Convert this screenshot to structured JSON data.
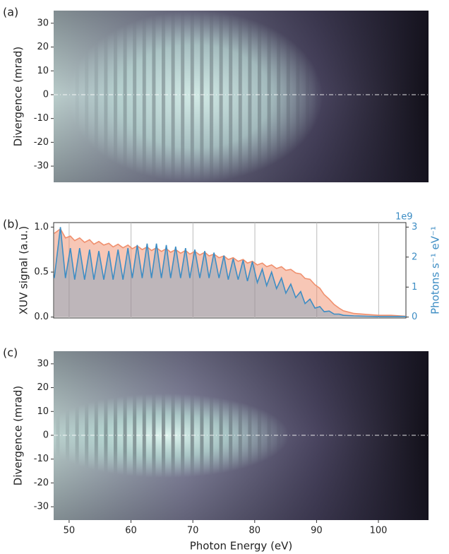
{
  "chart_data": [
    {
      "type": "heatmap",
      "label": "(a)",
      "ylabel": "Divergence (mrad)",
      "xlim": [
        47.5,
        108.1
      ],
      "ylim": [
        -36.8,
        35.3
      ],
      "yticks": [
        -30,
        -20,
        -10,
        0,
        10,
        20,
        30
      ]
    },
    {
      "type": "line",
      "label": "(b)",
      "ylabel": "XUV signal (a.u.)",
      "y2label": "Photons s⁻¹ eV⁻¹",
      "y2offset": "1e9",
      "xlim": [
        47.5,
        104.4
      ],
      "xgrid": [
        50,
        60,
        70,
        80,
        90,
        100
      ],
      "ylim": [
        -0.01,
        1.05
      ],
      "yticks": [
        {
          "value": 0,
          "label": "0.0"
        },
        {
          "value": 0.5,
          "label": "0.5"
        },
        {
          "value": 1,
          "label": "1.0"
        }
      ],
      "y2lim": [
        -0.03,
        3.15
      ],
      "y2ticks": [
        0,
        1,
        2,
        3
      ],
      "x": [
        47.6,
        48.6,
        49.4,
        50.2,
        50.9,
        51.7,
        52.5,
        53.3,
        54.0,
        54.8,
        55.6,
        56.4,
        57.1,
        57.9,
        58.7,
        59.5,
        60.2,
        61.0,
        61.8,
        62.6,
        63.3,
        64.1,
        64.9,
        65.7,
        66.4,
        67.2,
        68.0,
        68.8,
        69.5,
        70.3,
        71.1,
        71.9,
        72.6,
        73.4,
        74.2,
        75.0,
        75.7,
        76.5,
        77.3,
        78.1,
        78.8,
        79.6,
        80.4,
        81.2,
        81.9,
        82.7,
        83.5,
        84.3,
        85.0,
        85.8,
        86.6,
        87.4,
        88.1,
        88.9,
        89.7,
        90.5,
        91.2,
        92.0,
        92.8,
        93.6,
        94.3,
        96,
        98,
        100,
        102,
        104.4
      ],
      "series": [
        {
          "color": "#f0906e",
          "axis": "y",
          "values": [
            0.93,
            0.98,
            0.88,
            0.9,
            0.85,
            0.88,
            0.83,
            0.86,
            0.81,
            0.84,
            0.8,
            0.82,
            0.78,
            0.81,
            0.77,
            0.8,
            0.76,
            0.79,
            0.75,
            0.78,
            0.74,
            0.77,
            0.73,
            0.76,
            0.72,
            0.75,
            0.71,
            0.74,
            0.7,
            0.73,
            0.69,
            0.72,
            0.68,
            0.7,
            0.66,
            0.68,
            0.64,
            0.66,
            0.62,
            0.64,
            0.6,
            0.62,
            0.58,
            0.6,
            0.56,
            0.58,
            0.54,
            0.56,
            0.52,
            0.53,
            0.49,
            0.48,
            0.43,
            0.42,
            0.36,
            0.32,
            0.25,
            0.2,
            0.14,
            0.1,
            0.07,
            0.04,
            0.03,
            0.02,
            0.02,
            0.01
          ]
        },
        {
          "color": "#3d8dc4",
          "axis": "y2",
          "values": [
            1.3,
            3.0,
            1.3,
            2.3,
            1.25,
            2.3,
            1.25,
            2.25,
            1.25,
            2.2,
            1.25,
            2.2,
            1.25,
            2.25,
            1.25,
            2.3,
            1.3,
            2.4,
            1.3,
            2.45,
            1.3,
            2.45,
            1.3,
            2.4,
            1.3,
            2.35,
            1.3,
            2.3,
            1.3,
            2.25,
            1.3,
            2.2,
            1.3,
            2.15,
            1.3,
            2.05,
            1.25,
            1.95,
            1.25,
            1.9,
            1.2,
            1.85,
            1.15,
            1.6,
            1.05,
            1.5,
            0.95,
            1.3,
            0.8,
            1.1,
            0.65,
            0.85,
            0.45,
            0.6,
            0.3,
            0.35,
            0.18,
            0.2,
            0.1,
            0.1,
            0.06,
            0.04,
            0.03,
            0.02,
            0.02,
            0.02
          ]
        }
      ]
    },
    {
      "type": "heatmap",
      "label": "(c)",
      "ylabel": "Divergence (mrad)",
      "xlabel": "Photon Energy (eV)",
      "xlim": [
        47.5,
        108.1
      ],
      "xticks": [
        50,
        60,
        70,
        80,
        90,
        100
      ],
      "ylim": [
        -35.6,
        35.3
      ],
      "yticks": [
        -30,
        -20,
        -10,
        0,
        10,
        20,
        30
      ]
    }
  ]
}
